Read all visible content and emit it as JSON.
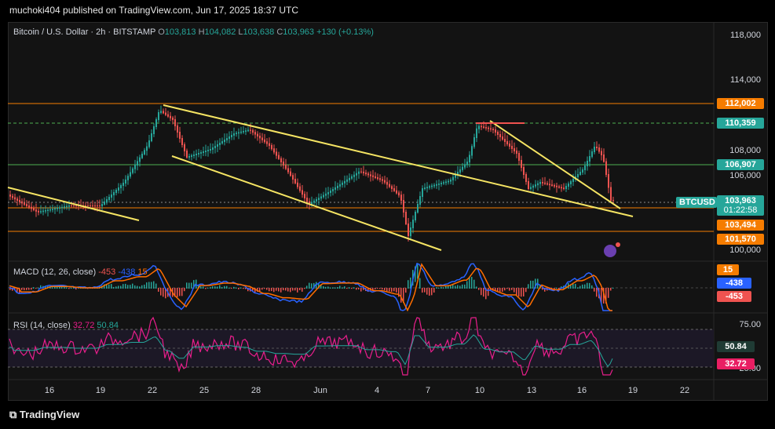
{
  "header": {
    "publisher": "muchoki404 published on TradingView.com, Jun 17, 2025 18:37 UTC"
  },
  "legend": {
    "symbol": "Bitcoin / U.S. Dollar · 2h · BITSTAMP",
    "o_label": "O",
    "o_value": "103,813",
    "h_label": "H",
    "h_value": "104,082",
    "l_label": "L",
    "l_value": "103,638",
    "c_label": "C",
    "c_value": "103,963",
    "change": "+130 (+0.13%)"
  },
  "price_axis": [
    "118,000",
    "114,000",
    "108,000",
    "106,000",
    "100,000"
  ],
  "price_tags": {
    "t112": "112,002",
    "t110": "110,359",
    "t106": "106,907",
    "symbol": "BTCUSD",
    "current": "103,963",
    "countdown": "01:22:58",
    "t103": "103,494",
    "t101": "101,570"
  },
  "macd": {
    "title": "MACD (12, 26, close)",
    "v1": "-453",
    "v2": "-438",
    "v3": "15",
    "tag1": "15",
    "tag2": "-438",
    "tag3": "-453"
  },
  "rsi": {
    "title": "RSI (14, close)",
    "v1": "32.72",
    "v2": "50.84",
    "axis75": "75.00",
    "axis25": "25.00",
    "tag1": "50.84",
    "tag2": "32.72"
  },
  "time_axis": [
    "16",
    "19",
    "22",
    "25",
    "28",
    "Jun",
    "4",
    "7",
    "10",
    "13",
    "16",
    "19",
    "22"
  ],
  "colors": {
    "up": "#26a69a",
    "down": "#ef5350",
    "level_red": "#f57c00",
    "level_green": "#4caf50",
    "trendline": "#f5e463",
    "rsi": "#e91e8c",
    "rsi_ma": "#26a69a",
    "macd": "#2962ff",
    "signal": "#ff6d00"
  },
  "brand": "TradingView"
}
